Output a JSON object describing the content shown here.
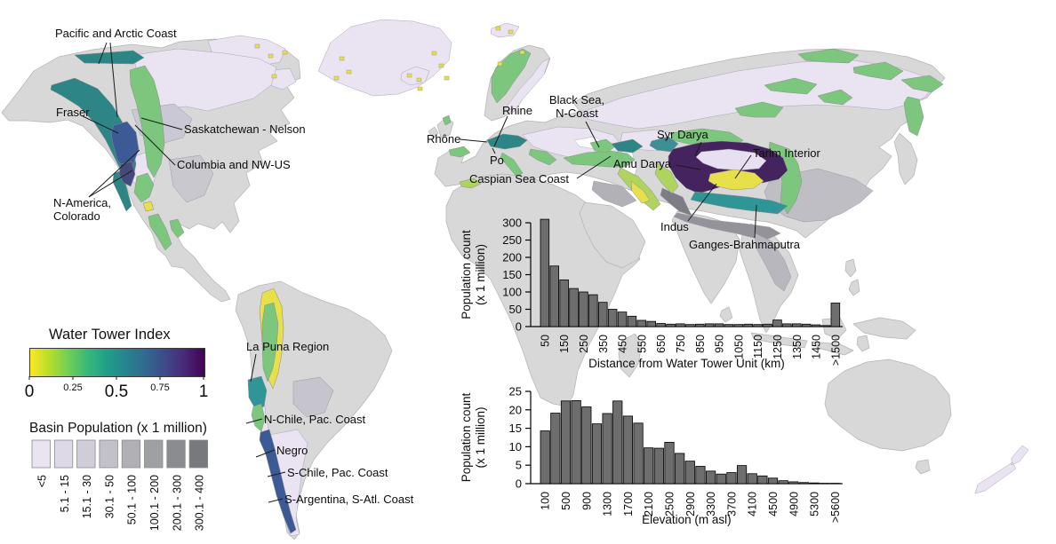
{
  "figure": {
    "wti_legend": {
      "title": "Water Tower Index",
      "ticks": [
        {
          "label": "0",
          "pos": 0,
          "major": true
        },
        {
          "label": "0.25",
          "pos": 0.25,
          "major": false
        },
        {
          "label": "0.5",
          "pos": 0.5,
          "major": true
        },
        {
          "label": "0.75",
          "pos": 0.75,
          "major": false
        },
        {
          "label": "1",
          "pos": 1,
          "major": true
        }
      ],
      "gradient_stops": [
        "#fde725",
        "#b5de2b",
        "#6ece58",
        "#35b779",
        "#1f9e89",
        "#26828e",
        "#31688e",
        "#3e4989",
        "#482878",
        "#440154"
      ]
    },
    "pop_legend": {
      "title": "Basin Population (x 1 million)",
      "classes": [
        "<5",
        "5.1 - 15",
        "15.1 - 30",
        "30.1 - 50",
        "50.1 - 100",
        "100.1 - 200",
        "200.1 - 300",
        "300.1 - 400"
      ],
      "colors": [
        "#eae4f1",
        "#ded9e6",
        "#d0cdd9",
        "#c2c0cb",
        "#b1b0b7",
        "#9fa0a4",
        "#8b8c8f",
        "#78797c"
      ]
    },
    "map_labels": {
      "pacific_arctic": "Pacific and Arctic Coast",
      "fraser": "Fraser",
      "saskatchewan": "Saskatchewan - Nelson",
      "columbia": "Columbia and NW-US",
      "n_america": "N-America,\nColorado",
      "rhone": "Rhône",
      "rhine": "Rhine",
      "po": "Po",
      "black_sea": "Black Sea,\nN-Coast",
      "caspian": "Caspian Sea Coast",
      "syr_darya": "Syr Darya",
      "amu_darya": "Amu Darya",
      "tarim": "Tarim Interior",
      "indus": "Indus",
      "ganges": "Ganges-Brahmaputra",
      "la_puna": "La Puna Region",
      "n_chile": "N-Chile, Pac. Coast",
      "negro": "Negro",
      "s_chile": "S-Chile, Pac. Coast",
      "s_argentina": "S-Argentina, S-Atl. Coast"
    },
    "palette": {
      "ocean": "#ffffff",
      "land": "#d8d8d8",
      "basin_lavender": "#e9e3f2",
      "tower_yellow": "#e8e04b",
      "tower_lightgreen": "#aed45f",
      "tower_green": "#7cc77d",
      "tower_teal": "#2f9596",
      "tower_navy": "#3b5a96",
      "tower_purple": "#45235e",
      "histogram_bar": "#6e6e6e"
    }
  },
  "chart_data": [
    {
      "type": "bar",
      "title": "",
      "ylabel": "Population count (x 1 million)",
      "ylabel_lines": [
        "Population count",
        "(x 1 million)"
      ],
      "xlabel": "Distance from Water Tower Unit (km)",
      "ylim": [
        0,
        300
      ],
      "yticks": [
        0,
        50,
        100,
        150,
        200,
        250,
        300
      ],
      "grid": false,
      "legend": "none",
      "bin_width_km": 50,
      "x_tick_labels": [
        "50",
        "150",
        "250",
        "350",
        "450",
        "550",
        "650",
        "750",
        "850",
        "950",
        "1050",
        "1150",
        "1250",
        "1350",
        "1450",
        ">1500"
      ],
      "x_tick_bar_indices": [
        0,
        2,
        4,
        6,
        8,
        10,
        12,
        14,
        16,
        18,
        20,
        22,
        24,
        26,
        28,
        30
      ],
      "values": [
        310,
        175,
        135,
        110,
        100,
        92,
        70,
        50,
        42,
        30,
        18,
        15,
        9,
        7,
        8,
        6,
        7,
        8,
        8,
        6,
        6,
        7,
        6,
        7,
        19,
        8,
        8,
        7,
        5,
        3,
        68
      ],
      "bar_color": "#6e6e6e"
    },
    {
      "type": "bar",
      "title": "",
      "ylabel": "Population count (x 1 million)",
      "ylabel_lines": [
        "Population count",
        "(x 1 million)"
      ],
      "xlabel": "Elevation (m asl)",
      "ylim": [
        0,
        25
      ],
      "yticks": [
        0,
        5,
        10,
        15,
        20,
        25
      ],
      "grid": false,
      "legend": "none",
      "bin_width_m": 200,
      "x_tick_labels": [
        "100",
        "500",
        "900",
        "1300",
        "1700",
        "2100",
        "2500",
        "2900",
        "3300",
        "3700",
        "4100",
        "4500",
        "4900",
        "5300",
        ">5600"
      ],
      "x_tick_bar_indices": [
        0,
        2,
        4,
        6,
        8,
        10,
        12,
        14,
        16,
        18,
        20,
        22,
        24,
        26,
        28
      ],
      "values": [
        14.3,
        19.1,
        22.4,
        22.5,
        20.8,
        16.2,
        19,
        22.4,
        18.3,
        16.4,
        9.7,
        9.6,
        11.2,
        8.2,
        6.1,
        4.7,
        3.4,
        2.6,
        3,
        4.9,
        2.7,
        2.1,
        1.5,
        0.8,
        0.5,
        0.3,
        0.2,
        0.1,
        0.1
      ],
      "bar_color": "#6e6e6e"
    }
  ]
}
